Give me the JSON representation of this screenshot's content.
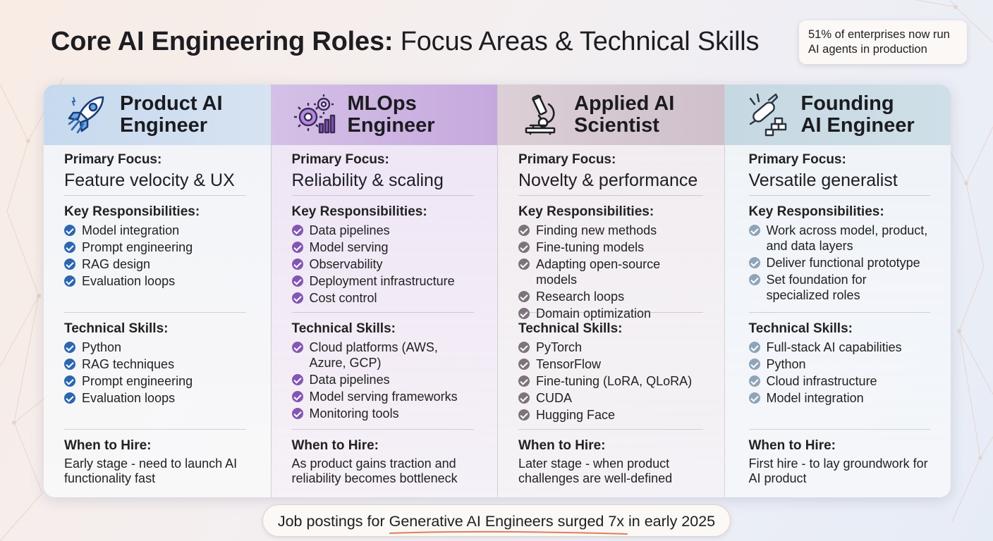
{
  "title": {
    "bold": "Core AI Engineering Roles:",
    "rest": " Focus Areas & Technical Skills"
  },
  "stat_note": "51% of enterprises now run AI agents in production",
  "labels": {
    "focus": "Primary Focus:",
    "responsibilities": "Key Responsibilities:",
    "skills": "Technical Skills:",
    "hire": "When to Hire:"
  },
  "colors": {
    "product_ai": "#2c66b0",
    "mlops": "#8456b3",
    "applied_ai": "#7d737c",
    "founding_ai": "#8ea4b8"
  },
  "roles": [
    {
      "name_line1": "Product AI",
      "name_line2": "Engineer",
      "icon": "rocket-icon",
      "focus": "Feature velocity & UX",
      "responsibilities": [
        "Model integration",
        "Prompt engineering",
        "RAG design",
        "Evaluation loops"
      ],
      "skills": [
        "Python",
        "RAG techniques",
        "Prompt engineering",
        "Evaluation loops"
      ],
      "hire": "Early stage - need to launch AI functionality fast"
    },
    {
      "name_line1": "MLOps",
      "name_line2": "Engineer",
      "icon": "gears-chart-icon",
      "focus": "Reliability & scaling",
      "responsibilities": [
        "Data pipelines",
        "Model serving",
        "Observability",
        "Deployment infrastructure",
        "Cost control"
      ],
      "skills": [
        "Cloud platforms (AWS, Azure, GCP)",
        "Data pipelines",
        "Model serving frameworks",
        "Monitoring tools"
      ],
      "hire": "As product gains traction and reliability becomes bottleneck"
    },
    {
      "name_line1": "Applied AI",
      "name_line2": "Scientist",
      "icon": "microscope-icon",
      "focus": "Novelty & performance",
      "responsibilities": [
        "Finding new methods",
        "Fine-tuning models",
        "Adapting open-source models",
        "Research loops",
        "Domain optimization"
      ],
      "skills": [
        "PyTorch",
        "TensorFlow",
        "Fine-tuning (LoRA, QLoRA)",
        "CUDA",
        "Hugging Face"
      ],
      "hire": "Later stage - when product challenges are well-defined"
    },
    {
      "name_line1": "Founding",
      "name_line2": "AI Engineer",
      "icon": "swiss-knife-blocks-icon",
      "focus": "Versatile generalist",
      "responsibilities": [
        "Work across model, product, and data layers",
        "Deliver functional prototype",
        "Set foundation for specialized roles"
      ],
      "skills": [
        "Full-stack AI capabilities",
        "Python",
        "Cloud infrastructure",
        "Model integration"
      ],
      "hire": "First hire - to lay groundwork for AI product"
    }
  ],
  "footer": "Job postings for Generative AI Engineers surged 7x in early 2025"
}
